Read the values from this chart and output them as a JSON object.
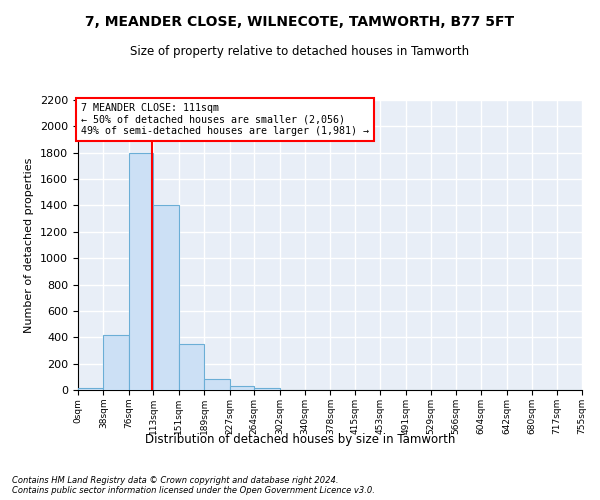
{
  "title": "7, MEANDER CLOSE, WILNECOTE, TAMWORTH, B77 5FT",
  "subtitle": "Size of property relative to detached houses in Tamworth",
  "xlabel": "Distribution of detached houses by size in Tamworth",
  "ylabel": "Number of detached properties",
  "bar_color": "#cce0f5",
  "bar_edge_color": "#6baed6",
  "background_color": "#e8eef7",
  "grid_color": "#ffffff",
  "vline_x": 111,
  "vline_color": "red",
  "bin_edges": [
    0,
    38,
    76,
    113,
    151,
    189,
    227,
    264,
    302,
    340,
    378,
    415,
    453,
    491,
    529,
    566,
    604,
    642,
    680,
    717,
    755
  ],
  "bar_heights": [
    15,
    420,
    1800,
    1400,
    350,
    80,
    30,
    15,
    0,
    0,
    0,
    0,
    0,
    0,
    0,
    0,
    0,
    0,
    0,
    0
  ],
  "xlim": [
    0,
    755
  ],
  "ylim": [
    0,
    2200
  ],
  "yticks": [
    0,
    200,
    400,
    600,
    800,
    1000,
    1200,
    1400,
    1600,
    1800,
    2000,
    2200
  ],
  "annotation_text": "7 MEANDER CLOSE: 111sqm\n← 50% of detached houses are smaller (2,056)\n49% of semi-detached houses are larger (1,981) →",
  "footer_line1": "Contains HM Land Registry data © Crown copyright and database right 2024.",
  "footer_line2": "Contains public sector information licensed under the Open Government Licence v3.0.",
  "tick_labels": [
    "0sqm",
    "38sqm",
    "76sqm",
    "113sqm",
    "151sqm",
    "189sqm",
    "227sqm",
    "264sqm",
    "302sqm",
    "340sqm",
    "378sqm",
    "415sqm",
    "453sqm",
    "491sqm",
    "529sqm",
    "566sqm",
    "604sqm",
    "642sqm",
    "680sqm",
    "717sqm",
    "755sqm"
  ]
}
